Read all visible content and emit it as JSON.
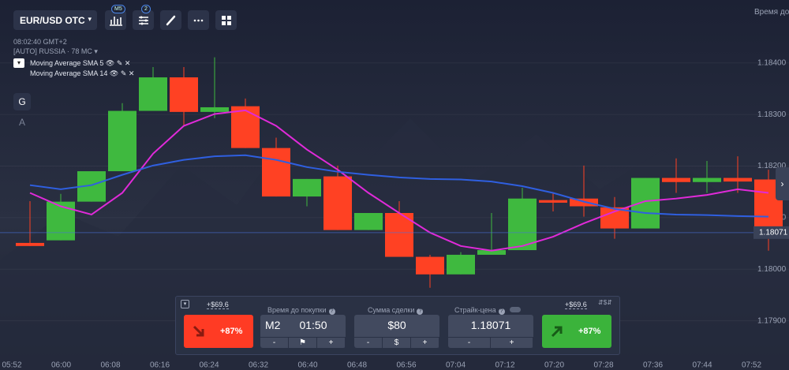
{
  "toolbar": {
    "asset": "EUR/USD OTC",
    "timeframe_badge": "M5",
    "indicator_badge": "2",
    "right_caption": "Время до"
  },
  "info": {
    "clock": "08:02:40 GMT+2",
    "region": "[AUTO] RUSSIA",
    "ping": "78 MC"
  },
  "side_buttons": [
    "G",
    "A"
  ],
  "chart_data": {
    "type": "candlestick",
    "open": [
      1.18051,
      1.18056,
      1.18131,
      1.1819,
      1.18307,
      1.18372,
      1.18305,
      1.18316,
      1.18235,
      1.18141,
      1.1818,
      1.18076,
      1.18109,
      1.18024,
      1.1799,
      1.18028,
      1.18037,
      1.18134,
      1.18137,
      1.1812,
      1.18079,
      1.18177,
      1.18169,
      1.18177,
      1.18174
    ],
    "high": [
      1.18132,
      1.18146,
      1.1819,
      1.18322,
      1.18392,
      1.18392,
      1.18411,
      1.18331,
      1.18255,
      1.18175,
      1.18201,
      1.18109,
      1.18132,
      1.18028,
      1.18033,
      1.18109,
      1.18158,
      1.18148,
      1.18201,
      1.1814,
      1.18177,
      1.18215,
      1.1821,
      1.18219,
      1.18193
    ],
    "low": [
      1.18045,
      1.18056,
      1.18131,
      1.1819,
      1.18307,
      1.18278,
      1.18293,
      1.18235,
      1.18141,
      1.18122,
      1.18076,
      1.18076,
      1.18024,
      1.17964,
      1.1799,
      1.18028,
      1.18037,
      1.18112,
      1.18102,
      1.18059,
      1.18079,
      1.18148,
      1.18148,
      1.18148,
      1.18036
    ],
    "close": [
      1.18045,
      1.18131,
      1.1819,
      1.18307,
      1.18372,
      1.18305,
      1.18314,
      1.18235,
      1.18141,
      1.18175,
      1.18076,
      1.18109,
      1.18024,
      1.1799,
      1.18028,
      1.18037,
      1.18137,
      1.18129,
      1.18122,
      1.18079,
      1.18177,
      1.18169,
      1.18177,
      1.1817,
      1.18063
    ],
    "up_color": "#3fb93f",
    "down_color": "#ff4123",
    "lines": [
      {
        "name": "Moving Average SMA 5",
        "color": "#e02ad9",
        "values": [
          1.18148,
          1.18122,
          1.18106,
          1.18148,
          1.18224,
          1.18278,
          1.18301,
          1.18308,
          1.18278,
          1.18232,
          1.18193,
          1.18148,
          1.18109,
          1.18071,
          1.18045,
          1.18036,
          1.18045,
          1.18063,
          1.18089,
          1.18112,
          1.18132,
          1.18137,
          1.18144,
          1.18155,
          1.18148
        ]
      },
      {
        "name": "Moving Average SMA 14",
        "color": "#2f5fe0",
        "values": [
          1.18163,
          1.18155,
          1.18163,
          1.18183,
          1.18201,
          1.18212,
          1.18219,
          1.18221,
          1.18212,
          1.18198,
          1.18189,
          1.18183,
          1.18178,
          1.18175,
          1.18174,
          1.1817,
          1.18161,
          1.18148,
          1.18131,
          1.18117,
          1.18109,
          1.18106,
          1.18105,
          1.18103,
          1.18102
        ]
      }
    ],
    "ylim": [
      1.17826,
      1.18522
    ],
    "yticks": [
      {
        "value": 1.179,
        "label": "1.17900"
      },
      {
        "value": 1.18,
        "label": "1.18000"
      },
      {
        "value": 1.181,
        "label": "1.18100"
      },
      {
        "value": 1.182,
        "label": "1.18200"
      },
      {
        "value": 1.183,
        "label": "1.18300"
      },
      {
        "value": 1.184,
        "label": "1.18400"
      }
    ],
    "current_price": {
      "value": 1.18071,
      "label": "1.18071"
    },
    "x_ticks": [
      "05:52",
      "06:00",
      "06:08",
      "06:16",
      "06:24",
      "06:32",
      "06:40",
      "06:48",
      "06:56",
      "07:04",
      "07:12",
      "07:20",
      "07:28",
      "07:36",
      "07:44",
      "07:52"
    ],
    "grid": true
  },
  "panel": {
    "put": {
      "payout": "+$69.6",
      "percent": "+87%"
    },
    "call": {
      "payout": "+$69.6",
      "percent": "+87%"
    },
    "expiry": {
      "label": "Время до покупки",
      "timeframe": "M2",
      "time": "01:50"
    },
    "amount": {
      "label": "Сумма сделки",
      "value": "$80",
      "currency": "$"
    },
    "strike": {
      "label": "Страйк-цена",
      "value": "1.18071"
    },
    "minus": "-",
    "plus": "+",
    "help": "?"
  }
}
